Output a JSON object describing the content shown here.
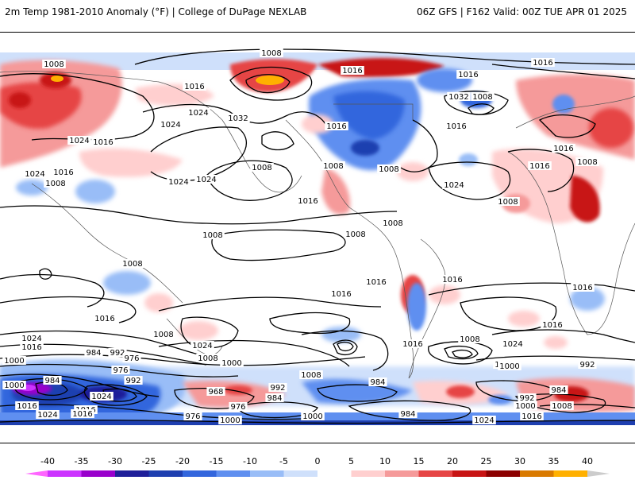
{
  "header": {
    "title": "2m Temp 1981-2010 Anomaly (°F) | College of DuPage NEXLAB",
    "valid": "06Z GFS | F162 Valid: 00Z TUE APR 01 2025"
  },
  "colorbar": {
    "ticks": [
      "-40",
      "-35",
      "-30",
      "-25",
      "-20",
      "-15",
      "-10",
      "-5",
      "0",
      "5",
      "10",
      "15",
      "20",
      "25",
      "30",
      "35",
      "40"
    ],
    "colors": [
      "#ff66ff",
      "#cc33ff",
      "#9900cc",
      "#1f1f99",
      "#1e3fb0",
      "#3366dd",
      "#5f8ff0",
      "#99bdf7",
      "#cfe0fb",
      "#ffffff",
      "#ffcfcf",
      "#f59a9a",
      "#e64545",
      "#c81414",
      "#8c0000",
      "#d97a00",
      "#ffb000",
      "#ffd800",
      "#cccccc"
    ]
  },
  "map": {
    "isobar_labels": [
      "1008",
      "1008",
      "1016",
      "1016",
      "1016",
      "1024",
      "1024",
      "1016",
      "1024",
      "1032",
      "1024",
      "1024",
      "1008",
      "1024",
      "1016",
      "1008",
      "1016",
      "1032",
      "1008",
      "1016",
      "1016",
      "1008",
      "1008",
      "1008",
      "1008",
      "1016",
      "1024",
      "1016",
      "1008",
      "1016",
      "1008",
      "1008",
      "1008",
      "1016",
      "1016",
      "1016",
      "1016",
      "1024",
      "1016",
      "1016",
      "1008",
      "1024",
      "1016",
      "1008",
      "1024",
      "1016",
      "1000",
      "1008",
      "1000",
      "984",
      "992",
      "976",
      "976",
      "992",
      "1000",
      "984",
      "1000",
      "1024",
      "1016",
      "968",
      "984",
      "992",
      "984",
      "1008",
      "1000",
      "992",
      "984",
      "1000",
      "1008",
      "992",
      "976",
      "1016",
      "1024",
      "1000",
      "1016",
      "1024",
      "1016",
      "976",
      "1000",
      "984"
    ]
  }
}
